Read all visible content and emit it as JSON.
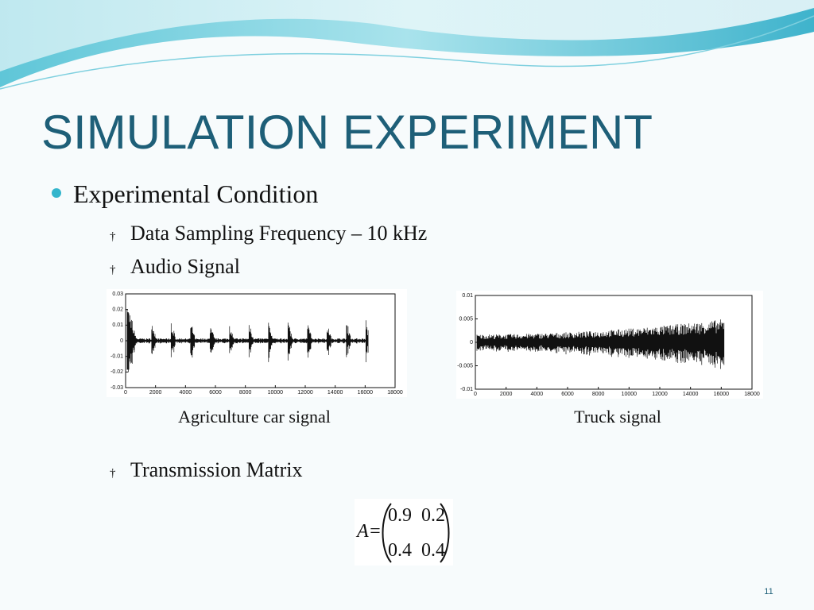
{
  "slide": {
    "title": "SIMULATION EXPERIMENT",
    "bullet": "Experimental Condition",
    "sub_bullets": [
      "Data Sampling Frequency – 10 kHz",
      "Audio Signal",
      "Transmission Matrix"
    ],
    "figures": [
      {
        "caption": "Agriculture car signal",
        "xlim": [
          0,
          18000
        ],
        "ylim": [
          -0.03,
          0.03
        ],
        "xticks": [
          0,
          2000,
          4000,
          6000,
          8000,
          10000,
          12000,
          14000,
          16000,
          18000
        ],
        "yticks": [
          0.03,
          0.02,
          0.01,
          0,
          -0.01,
          -0.02,
          -0.03
        ]
      },
      {
        "caption": "Truck signal",
        "xlim": [
          0,
          18000
        ],
        "ylim": [
          -0.01,
          0.01
        ],
        "xticks": [
          0,
          2000,
          4000,
          6000,
          8000,
          10000,
          12000,
          14000,
          16000,
          18000
        ],
        "yticks": [
          0.01,
          0.005,
          0,
          -0.005,
          -0.01
        ]
      }
    ],
    "matrix": {
      "label": "A=",
      "rows": [
        [
          "0.9",
          "0.2"
        ],
        [
          "0.4",
          "0.4"
        ]
      ]
    },
    "page_number": "11"
  }
}
